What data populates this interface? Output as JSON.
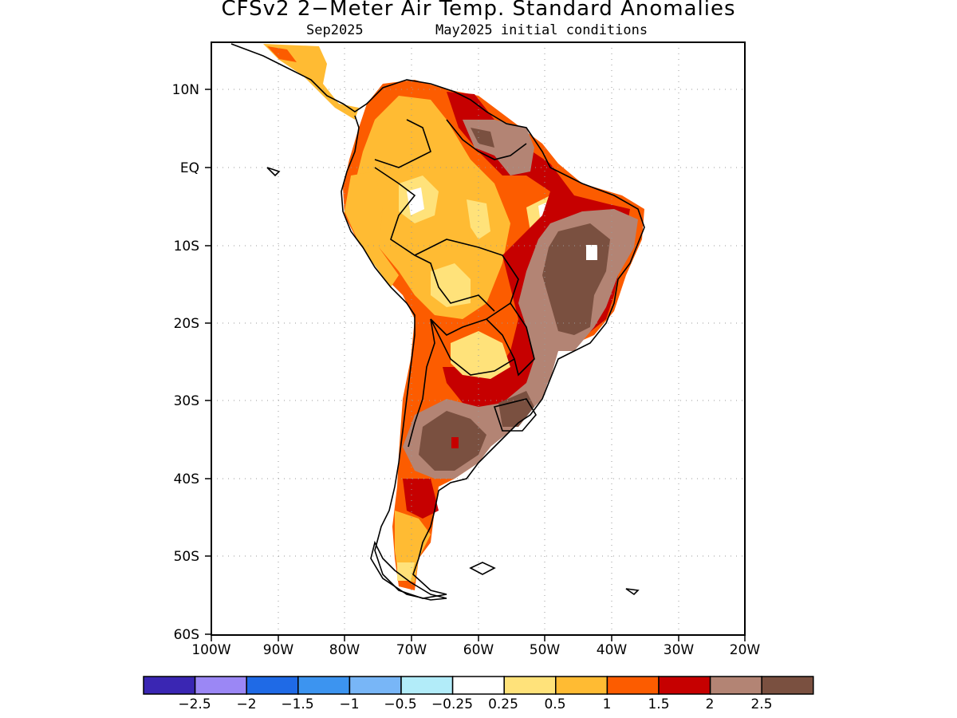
{
  "header": {
    "title": "CFSv2 2−Meter Air Temp. Standard Anomalies",
    "valid_month": "Sep2025",
    "init_conditions": "May2025 initial conditions"
  },
  "map": {
    "lat_labels": [
      "10N",
      "EQ",
      "10S",
      "20S",
      "30S",
      "40S",
      "50S",
      "60S"
    ],
    "lon_labels": [
      "100W",
      "90W",
      "80W",
      "70W",
      "60W",
      "50W",
      "40W",
      "30W",
      "20W"
    ],
    "lat_range": [
      -60,
      14
    ],
    "lon_range": [
      -100,
      -20
    ]
  },
  "colorbar": {
    "colors": [
      "#3a26b3",
      "#9b87f5",
      "#1f6ae6",
      "#3c94f0",
      "#78b6f7",
      "#b2ecf9",
      "#ffffff",
      "#ffe27a",
      "#ffbb33",
      "#fc5c00",
      "#c60000",
      "#b38474",
      "#7a5040"
    ],
    "labels": [
      "−2.5",
      "−2",
      "−1.5",
      "−1",
      "−0.5",
      "−0.25",
      "0.25",
      "0.5",
      "1",
      "1.5",
      "2",
      "2.5"
    ]
  }
}
